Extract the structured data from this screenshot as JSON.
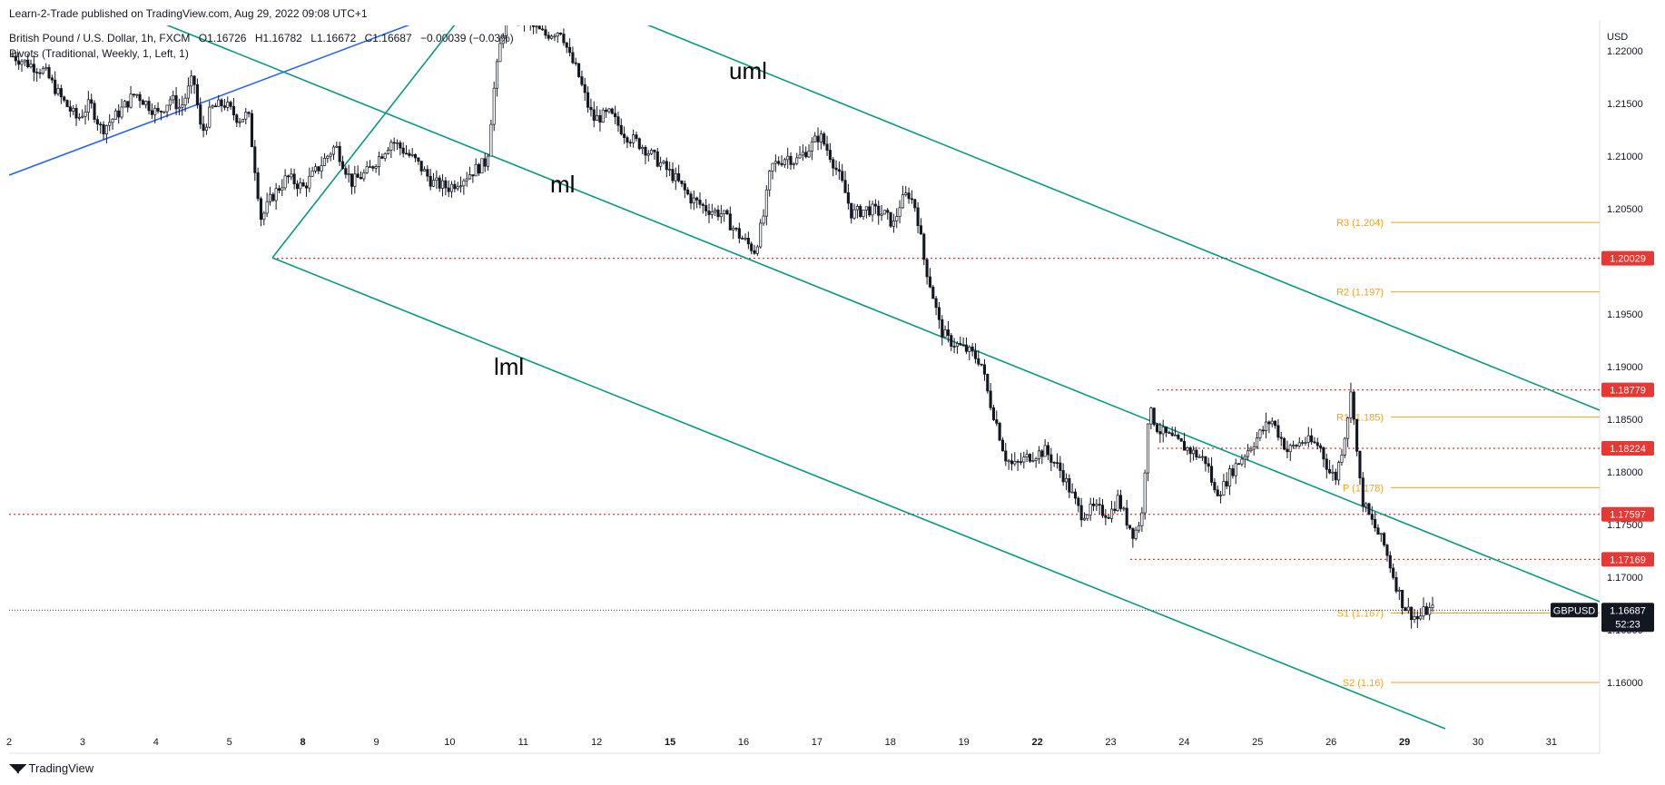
{
  "header": {
    "publisher": "Learn-2-Trade published on TradingView.com, Aug 29, 2022 09:08 UTC+1",
    "symbol_desc": "British Pound / U.S. Dollar, 1h, FXCM",
    "ohlc": {
      "open": "O1.16726",
      "high": "H1.16782",
      "low": "L1.16672",
      "close": "C1.16687",
      "change": "−0.00039 (−0.03%)"
    },
    "indicator": "Pivots (Traditional, Weekly, 1, Left, 1)"
  },
  "footer": {
    "brand": "TradingView"
  },
  "colors": {
    "candle": "#131722",
    "trendline_blue": "#2962ff",
    "channel": "#089981",
    "pivot": "#f7a21b",
    "level": "#e53935",
    "grid_text": "#131722"
  },
  "chart_data": {
    "type": "candlestick",
    "currency": "USD",
    "ticker": "GBPUSD",
    "last_price": "1.16687",
    "countdown": "52:23",
    "y_range": [
      1.154,
      1.2225
    ],
    "y_ticks": [
      "1.22000",
      "1.21500",
      "1.21000",
      "1.20500",
      "1.20000",
      "1.19500",
      "1.19000",
      "1.18500",
      "1.18000",
      "1.17500",
      "1.17000",
      "1.16500",
      "1.16000"
    ],
    "x_ticks": [
      {
        "label": "2",
        "bold": false
      },
      {
        "label": "3",
        "bold": false
      },
      {
        "label": "4",
        "bold": false
      },
      {
        "label": "5",
        "bold": false
      },
      {
        "label": "8",
        "bold": true
      },
      {
        "label": "9",
        "bold": false
      },
      {
        "label": "10",
        "bold": false
      },
      {
        "label": "11",
        "bold": false
      },
      {
        "label": "12",
        "bold": false
      },
      {
        "label": "15",
        "bold": true
      },
      {
        "label": "16",
        "bold": false
      },
      {
        "label": "17",
        "bold": false
      },
      {
        "label": "18",
        "bold": false
      },
      {
        "label": "19",
        "bold": false
      },
      {
        "label": "22",
        "bold": true
      },
      {
        "label": "23",
        "bold": false
      },
      {
        "label": "24",
        "bold": false
      },
      {
        "label": "25",
        "bold": false
      },
      {
        "label": "26",
        "bold": false
      },
      {
        "label": "29",
        "bold": true
      },
      {
        "label": "30",
        "bold": false
      },
      {
        "label": "31",
        "bold": false
      }
    ],
    "price_path": [
      [
        0,
        1.2195
      ],
      [
        2,
        1.218
      ],
      [
        3,
        1.2155
      ],
      [
        4,
        1.2135
      ],
      [
        4.8,
        1.215
      ],
      [
        5.5,
        1.2125
      ],
      [
        6.5,
        1.214
      ],
      [
        7.6,
        1.216
      ],
      [
        9,
        1.214
      ],
      [
        9.8,
        1.2155
      ],
      [
        10.4,
        1.2145
      ],
      [
        11.2,
        1.2175
      ],
      [
        11.7,
        1.212
      ],
      [
        12.3,
        1.2145
      ],
      [
        13.1,
        1.215
      ],
      [
        14,
        1.2135
      ],
      [
        14.6,
        1.214
      ],
      [
        15.4,
        1.204
      ],
      [
        16,
        1.206
      ],
      [
        17,
        1.208
      ],
      [
        18,
        1.207
      ],
      [
        19,
        1.209
      ],
      [
        20,
        1.211
      ],
      [
        21,
        1.2075
      ],
      [
        22,
        1.2085
      ],
      [
        23.5,
        1.2115
      ],
      [
        25,
        1.2095
      ],
      [
        26,
        1.2075
      ],
      [
        27,
        1.207
      ],
      [
        28,
        1.208
      ],
      [
        29.4,
        1.2095
      ],
      [
        29.8,
        1.216
      ],
      [
        30.3,
        1.2215
      ],
      [
        31,
        1.224
      ],
      [
        32,
        1.2225
      ],
      [
        33,
        1.2215
      ],
      [
        34,
        1.222
      ],
      [
        34.5,
        1.2195
      ],
      [
        35,
        1.218
      ],
      [
        35.6,
        1.215
      ],
      [
        36,
        1.2135
      ],
      [
        37,
        1.214
      ],
      [
        38,
        1.212
      ],
      [
        39,
        1.211
      ],
      [
        40,
        1.2095
      ],
      [
        41,
        1.208
      ],
      [
        42,
        1.206
      ],
      [
        43,
        1.205
      ],
      [
        44,
        1.2045
      ],
      [
        45,
        1.2025
      ],
      [
        46,
        1.201
      ],
      [
        46.5,
        1.204
      ],
      [
        47,
        1.209
      ],
      [
        48,
        1.21
      ],
      [
        48.5,
        1.2095
      ],
      [
        49.5,
        1.211
      ],
      [
        50,
        1.212
      ],
      [
        50.7,
        1.21
      ],
      [
        51.5,
        1.207
      ],
      [
        52,
        1.2045
      ],
      [
        53,
        1.205
      ],
      [
        54,
        1.2045
      ],
      [
        54.6,
        1.2035
      ],
      [
        55,
        1.2055
      ],
      [
        55.5,
        1.2065
      ],
      [
        56,
        1.205
      ],
      [
        56.5,
        1.2
      ],
      [
        57,
        1.197
      ],
      [
        57.5,
        1.1935
      ],
      [
        58,
        1.1925
      ],
      [
        58.6,
        1.192
      ],
      [
        59.2,
        1.1915
      ],
      [
        60,
        1.1905
      ],
      [
        60.5,
        1.187
      ],
      [
        61,
        1.1845
      ],
      [
        61.5,
        1.1815
      ],
      [
        62,
        1.1805
      ],
      [
        63,
        1.1815
      ],
      [
        64,
        1.182
      ],
      [
        65,
        1.18
      ],
      [
        65.6,
        1.178
      ],
      [
        66.2,
        1.176
      ],
      [
        67,
        1.1765
      ],
      [
        68,
        1.176
      ],
      [
        68.5,
        1.1775
      ],
      [
        69,
        1.1755
      ],
      [
        69.5,
        1.174
      ],
      [
        70,
        1.176
      ],
      [
        70.4,
        1.186
      ],
      [
        71,
        1.184
      ],
      [
        72,
        1.183
      ],
      [
        73,
        1.182
      ],
      [
        74,
        1.181
      ],
      [
        74.5,
        1.178
      ],
      [
        75,
        1.1785
      ],
      [
        75.5,
        1.18
      ],
      [
        76,
        1.181
      ],
      [
        77,
        1.183
      ],
      [
        78,
        1.185
      ],
      [
        79,
        1.182
      ],
      [
        80,
        1.183
      ],
      [
        81,
        1.1825
      ],
      [
        81.6,
        1.18
      ],
      [
        82,
        1.1795
      ],
      [
        82.5,
        1.183
      ],
      [
        83,
        1.188
      ],
      [
        83.3,
        1.182
      ],
      [
        83.6,
        1.1775
      ],
      [
        84,
        1.176
      ],
      [
        84.5,
        1.1745
      ],
      [
        85,
        1.173
      ],
      [
        85.4,
        1.171
      ],
      [
        85.8,
        1.169
      ],
      [
        86.2,
        1.1673
      ],
      [
        86.7,
        1.1665
      ],
      [
        87.1,
        1.166
      ],
      [
        87.5,
        1.1668
      ],
      [
        88,
        1.1669
      ]
    ],
    "levels": [
      {
        "label": "1.20029",
        "value": 1.20029
      },
      {
        "label": "1.18779",
        "value": 1.18779
      },
      {
        "label": "1.18224",
        "value": 1.18224
      },
      {
        "label": "1.17597",
        "value": 1.17597
      },
      {
        "label": "1.17169",
        "value": 1.17169
      }
    ],
    "pivots": [
      {
        "label": "R3 (1.204)",
        "value": 1.2037
      },
      {
        "label": "R2 (1.197)",
        "value": 1.1971
      },
      {
        "label": "R1 (1.185)",
        "value": 1.1852
      },
      {
        "label": "P (1.178)",
        "value": 1.1785
      },
      {
        "label": "S1 (1.167)",
        "value": 1.1666
      },
      {
        "label": "S2 (1.16)",
        "value": 1.16
      }
    ],
    "annotations": [
      "uml",
      "ml",
      "lml"
    ]
  }
}
